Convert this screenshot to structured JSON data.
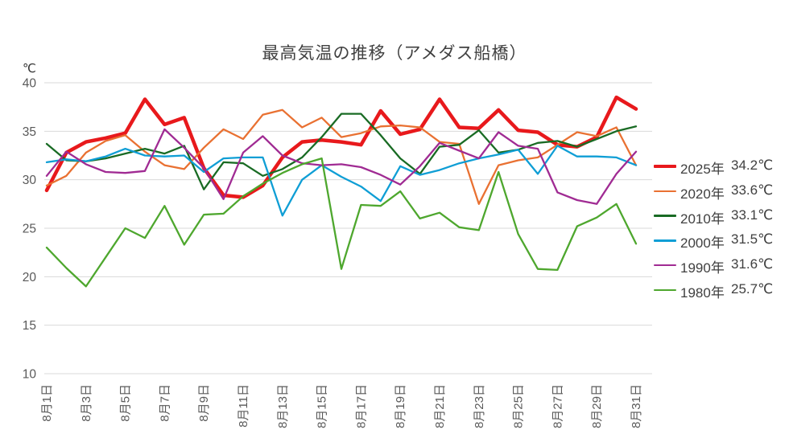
{
  "chart_data": {
    "type": "line",
    "title": "最高気温の推移（アメダス船橋）",
    "unit_label": "℃",
    "x_categories": [
      "8月1日",
      "8月2日",
      "8月3日",
      "8月4日",
      "8月5日",
      "8月6日",
      "8月7日",
      "8月8日",
      "8月9日",
      "8月10日",
      "8月11日",
      "8月12日",
      "8月13日",
      "8月14日",
      "8月15日",
      "8月16日",
      "8月17日",
      "8月18日",
      "8月19日",
      "8月20日",
      "8月21日",
      "8月22日",
      "8月23日",
      "8月24日",
      "8月25日",
      "8月26日",
      "8月27日",
      "8月28日",
      "8月29日",
      "8月30日",
      "8月31日"
    ],
    "x_tick_every": 2,
    "ylim": [
      10,
      40
    ],
    "y_ticks": [
      40,
      35,
      30,
      25,
      20,
      15,
      10
    ],
    "grid": true,
    "legend_position": "right",
    "colors": {
      "grid": "#d9d9d9",
      "axis_text": "#595959",
      "title_text": "#404040"
    },
    "series": [
      {
        "name": "2025年",
        "avg_label": "34.2℃",
        "color": "#e8191c",
        "width": 4.5,
        "values": [
          28.9,
          32.8,
          33.9,
          34.3,
          34.8,
          38.3,
          35.7,
          36.4,
          31.2,
          28.4,
          28.2,
          29.4,
          32.3,
          33.9,
          34.1,
          33.9,
          33.6,
          37.1,
          34.7,
          35.2,
          38.3,
          35.4,
          35.3,
          37.2,
          35.1,
          34.9,
          33.6,
          33.4,
          34.4,
          38.5,
          37.3
        ]
      },
      {
        "name": "2020年",
        "avg_label": "33.6℃",
        "color": "#e97132",
        "width": 2.3,
        "values": [
          29.4,
          30.4,
          32.8,
          34.0,
          34.6,
          32.9,
          31.5,
          31.1,
          33.3,
          35.2,
          34.2,
          36.7,
          37.2,
          35.4,
          36.4,
          34.4,
          34.8,
          35.5,
          35.6,
          35.4,
          33.9,
          33.7,
          27.5,
          31.5,
          32.0,
          32.3,
          33.6,
          34.9,
          34.5,
          35.4,
          31.5
        ]
      },
      {
        "name": "2010年",
        "avg_label": "33.1℃",
        "color": "#196b24",
        "width": 2.3,
        "values": [
          33.7,
          32.0,
          31.9,
          32.2,
          32.7,
          33.2,
          32.7,
          33.5,
          29.0,
          31.8,
          31.7,
          30.4,
          31.1,
          32.3,
          34.4,
          36.8,
          36.8,
          34.6,
          32.2,
          30.6,
          33.4,
          33.6,
          35.1,
          32.8,
          33.1,
          33.8,
          34.0,
          33.4,
          34.2,
          35.0,
          35.5
        ]
      },
      {
        "name": "2000年",
        "avg_label": "31.5℃",
        "color": "#0f9ed5",
        "width": 2.3,
        "values": [
          31.8,
          32.1,
          31.9,
          32.4,
          33.2,
          32.5,
          32.4,
          32.5,
          30.8,
          32.2,
          32.3,
          32.3,
          26.3,
          30.0,
          31.5,
          30.3,
          29.3,
          27.8,
          31.4,
          30.5,
          31.0,
          31.7,
          32.2,
          32.6,
          33.1,
          30.6,
          33.5,
          32.4,
          32.4,
          32.3,
          31.5
        ]
      },
      {
        "name": "1990年",
        "avg_label": "31.6℃",
        "color": "#a02b93",
        "width": 2.3,
        "values": [
          30.4,
          32.9,
          31.6,
          30.8,
          30.7,
          30.9,
          35.2,
          33.3,
          31.2,
          28.0,
          32.8,
          34.5,
          32.5,
          31.7,
          31.5,
          31.6,
          31.3,
          30.5,
          29.5,
          31.4,
          33.8,
          33.0,
          32.2,
          34.9,
          33.5,
          33.2,
          28.7,
          27.9,
          27.5,
          30.6,
          32.9
        ]
      },
      {
        "name": "1980年",
        "avg_label": "25.7℃",
        "color": "#4ea72e",
        "width": 2.3,
        "values": [
          23.0,
          20.9,
          19.0,
          22.0,
          25.0,
          24.0,
          27.3,
          23.3,
          26.4,
          26.5,
          28.3,
          29.6,
          30.7,
          31.6,
          32.2,
          20.8,
          27.4,
          27.3,
          28.8,
          26.0,
          26.6,
          25.1,
          24.8,
          30.8,
          24.4,
          20.8,
          20.7,
          25.2,
          26.1,
          27.5,
          23.4
        ]
      }
    ]
  }
}
